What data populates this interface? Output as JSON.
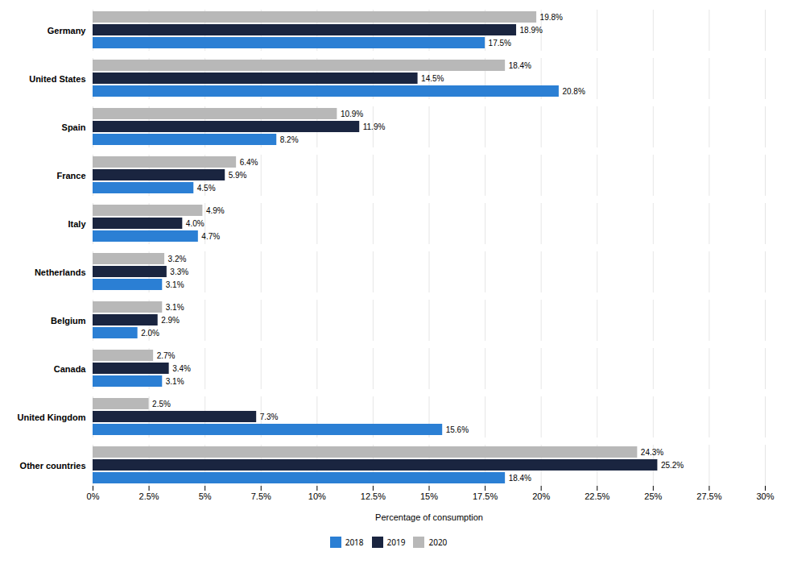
{
  "chart_data": {
    "type": "bar",
    "orientation": "horizontal",
    "xlabel": "Percentage of consumption",
    "categories": [
      "Germany",
      "United States",
      "Spain",
      "France",
      "Italy",
      "Netherlands",
      "Belgium",
      "Canada",
      "United Kingdom",
      "Other countries"
    ],
    "series": [
      {
        "name": "2018",
        "color": "#2b7fd4",
        "values": [
          17.5,
          20.8,
          8.2,
          4.5,
          4.7,
          3.1,
          2.0,
          3.1,
          15.6,
          18.4
        ],
        "value_labels": [
          "17.5%",
          "20.8%",
          "8.2%",
          "4.5%",
          "4.7%",
          "3.1%",
          "2.0%",
          "3.1%",
          "15.6%",
          "18.4%"
        ]
      },
      {
        "name": "2019",
        "color": "#1a2540",
        "values": [
          18.9,
          14.5,
          11.9,
          5.9,
          4.0,
          3.3,
          2.9,
          3.4,
          7.3,
          25.2
        ],
        "value_labels": [
          "18.9%",
          "14.5%",
          "11.9%",
          "5.9%",
          "4.0%",
          "3.3%",
          "2.9%",
          "3.4%",
          "7.3%",
          "25.2%"
        ]
      },
      {
        "name": "2020",
        "color": "#b8b8b8",
        "values": [
          19.8,
          18.4,
          10.9,
          6.4,
          4.9,
          3.2,
          3.1,
          2.7,
          2.5,
          24.3
        ],
        "value_labels": [
          "19.8%",
          "18.4%",
          "10.9%",
          "6.4%",
          "4.9%",
          "3.2%",
          "3.1%",
          "2.7%",
          "2.5%",
          "24.3%"
        ]
      }
    ],
    "xlim": [
      0,
      30
    ],
    "xticks": [
      {
        "value": 0,
        "label": "0%"
      },
      {
        "value": 2.5,
        "label": "2.5%"
      },
      {
        "value": 5,
        "label": "5%"
      },
      {
        "value": 7.5,
        "label": "7.5%"
      },
      {
        "value": 10,
        "label": "10%"
      },
      {
        "value": 12.5,
        "label": "12.5%"
      },
      {
        "value": 15,
        "label": "15%"
      },
      {
        "value": 17.5,
        "label": "17.5%"
      },
      {
        "value": 20,
        "label": "20%"
      },
      {
        "value": 22.5,
        "label": "22.5%"
      },
      {
        "value": 25,
        "label": "25%"
      },
      {
        "value": 27.5,
        "label": "27.5%"
      },
      {
        "value": 30,
        "label": "30%"
      }
    ],
    "grid": true,
    "data_labels": true,
    "legend": "bottom"
  }
}
